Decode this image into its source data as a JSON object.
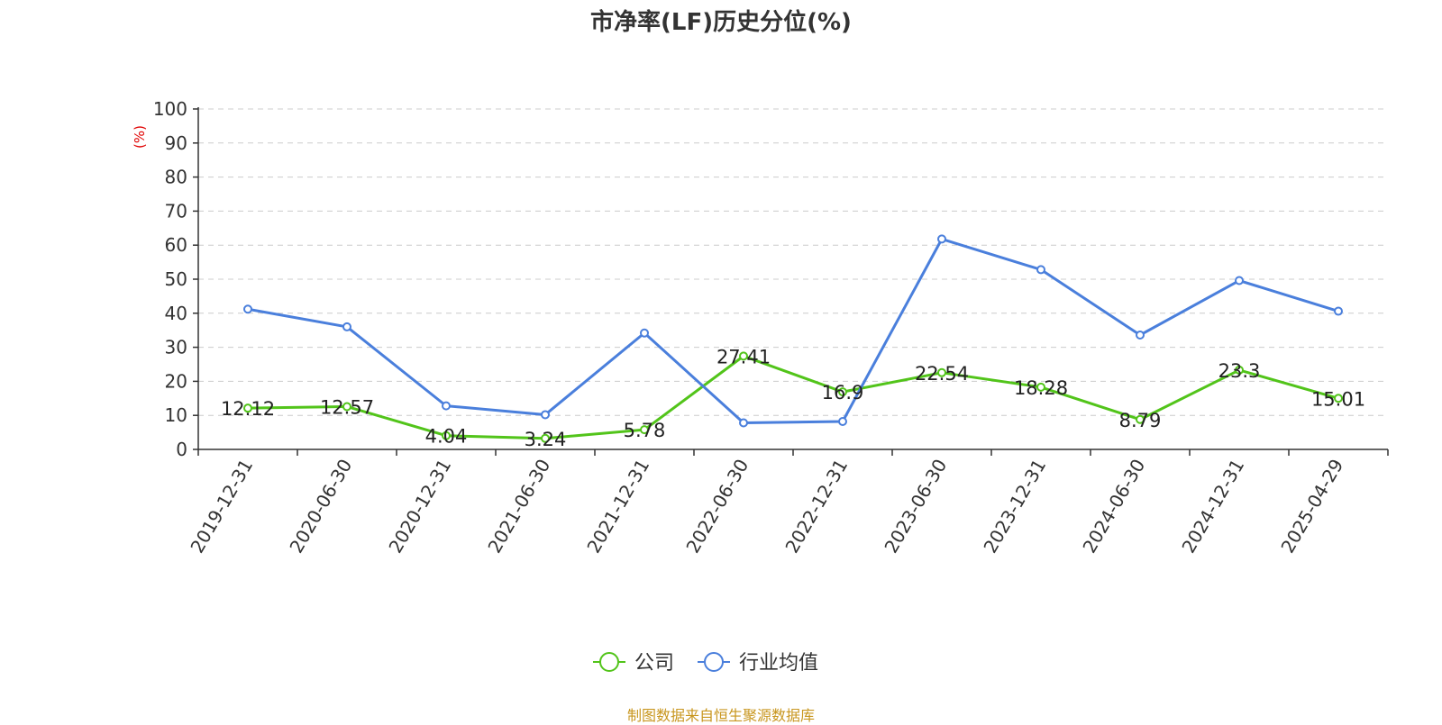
{
  "chart_data": {
    "type": "line",
    "title": "市净率(LF)历史分位(%)",
    "ylabel": "(%)",
    "ylim": [
      0,
      100
    ],
    "yticks": [
      0,
      10,
      20,
      30,
      40,
      50,
      60,
      70,
      80,
      90,
      100
    ],
    "categories": [
      "2019-12-31",
      "2020-06-30",
      "2020-12-31",
      "2021-06-30",
      "2021-12-31",
      "2022-06-30",
      "2022-12-31",
      "2023-06-30",
      "2023-12-31",
      "2024-06-30",
      "2024-12-31",
      "2025-04-29"
    ],
    "grid": true,
    "legend_position": "bottom",
    "series": [
      {
        "name": "公司",
        "color": "#52c41a",
        "values": [
          12.12,
          12.57,
          4.04,
          3.24,
          5.78,
          27.41,
          16.9,
          22.54,
          18.28,
          8.79,
          23.3,
          15.01
        ],
        "labels": [
          "12.12",
          "12.57",
          "4.04",
          "3.24",
          "5.78",
          "27.41",
          "16.9",
          "22.54",
          "18.28",
          "8.79",
          "23.3",
          "15.01"
        ]
      },
      {
        "name": "行业均值",
        "color": "#4a7fdc",
        "values": [
          41.2,
          36.0,
          12.8,
          10.2,
          34.2,
          7.8,
          8.2,
          61.8,
          52.8,
          33.6,
          49.6,
          40.6
        ]
      }
    ]
  },
  "source": "制图数据来自恒生聚源数据库"
}
